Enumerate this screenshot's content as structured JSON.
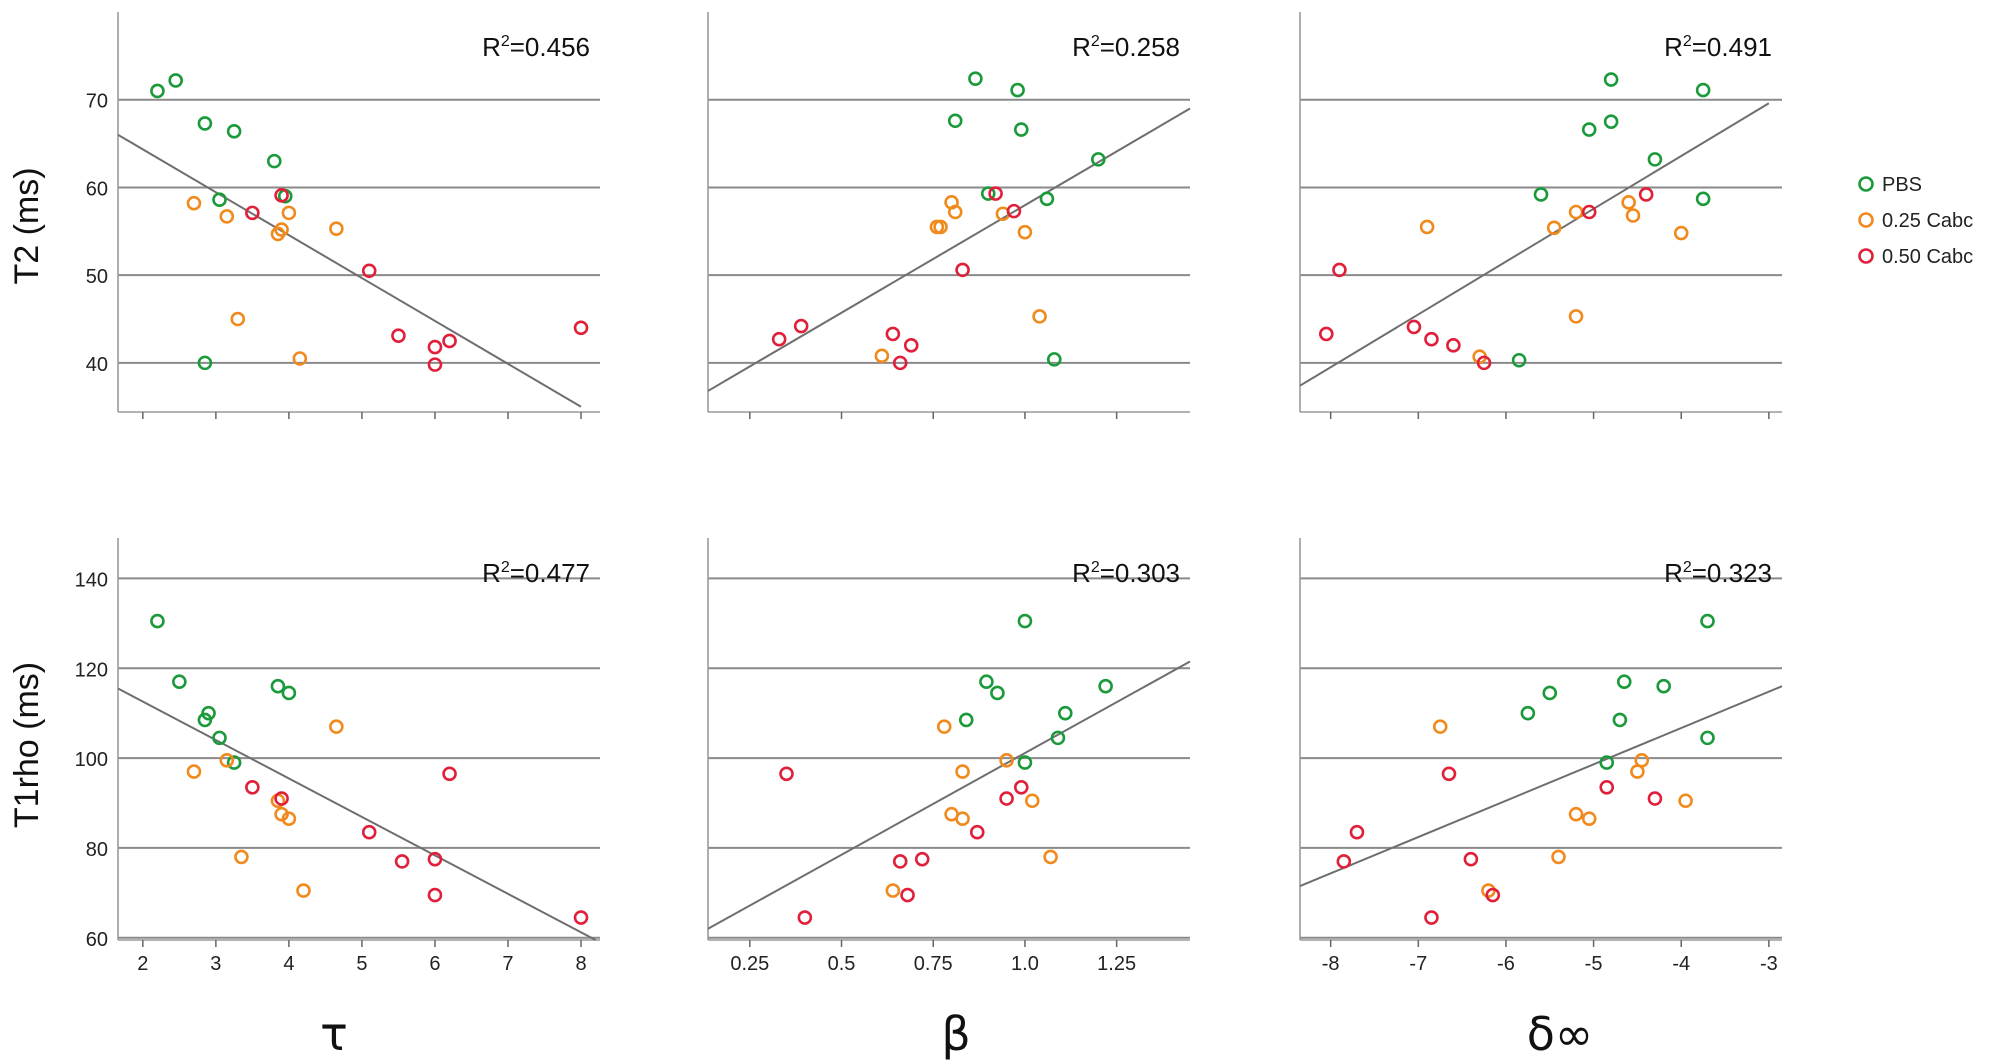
{
  "legend": [
    {
      "label": "PBS",
      "color": "#1a9a3a"
    },
    {
      "label": "0.25 Cabc",
      "color": "#f08a1c"
    },
    {
      "label": "0.50 Cabc",
      "color": "#e0203a"
    }
  ],
  "row_labels": {
    "top": "T2 (ms)",
    "bottom": "T1rho (ms)"
  },
  "column_labels": [
    "τ",
    "β",
    "δ∞"
  ],
  "chart_data": [
    {
      "type": "scatter",
      "row": 0,
      "col": 0,
      "xlabel": "τ",
      "ylabel": "T2 (ms)",
      "xlim": [
        1.66,
        8.26
      ],
      "ylim": [
        34.4,
        80
      ],
      "xticks": [
        2,
        3,
        4,
        5,
        6,
        7,
        8
      ],
      "show_xtick_labels": false,
      "yticks": [
        40,
        50,
        60,
        70
      ],
      "fit": {
        "x": [
          1.66,
          8.0
        ],
        "y": [
          66.0,
          35.0
        ]
      },
      "annotation": "R²=0.456",
      "r2_prefix": "R",
      "r2_sup": "2",
      "r2_value": "=0.456",
      "series": [
        {
          "name": "PBS",
          "points": [
            [
              2.2,
              71
            ],
            [
              2.45,
              72.2
            ],
            [
              2.85,
              67.3
            ],
            [
              3.25,
              66.4
            ],
            [
              3.05,
              58.6
            ],
            [
              3.8,
              63
            ],
            [
              3.95,
              59
            ],
            [
              2.85,
              40
            ]
          ]
        },
        {
          "name": "0.25 Cabc",
          "points": [
            [
              2.7,
              58.2
            ],
            [
              3.15,
              56.7
            ],
            [
              3.85,
              54.7
            ],
            [
              3.9,
              55.2
            ],
            [
              4.0,
              57.1
            ],
            [
              4.65,
              55.3
            ],
            [
              3.3,
              45
            ],
            [
              4.15,
              40.5
            ]
          ]
        },
        {
          "name": "0.50 Cabc",
          "points": [
            [
              3.5,
              57.1
            ],
            [
              3.9,
              59.1
            ],
            [
              5.1,
              50.5
            ],
            [
              5.5,
              43.1
            ],
            [
              6.0,
              41.8
            ],
            [
              6.2,
              42.5
            ],
            [
              6.0,
              39.8
            ],
            [
              8.0,
              44.0
            ]
          ]
        }
      ]
    },
    {
      "type": "scatter",
      "row": 0,
      "col": 1,
      "xlabel": "β",
      "ylabel": "T2 (ms)",
      "xlim": [
        0.136,
        1.45
      ],
      "ylim": [
        34.4,
        80
      ],
      "xticks": [
        0.25,
        0.5,
        0.75,
        1.0,
        1.25
      ],
      "show_xtick_labels": false,
      "yticks": [
        40,
        50,
        60,
        70
      ],
      "fit": {
        "x": [
          0.136,
          1.45
        ],
        "y": [
          36.8,
          69.0
        ]
      },
      "annotation": "R²=0.258",
      "r2_prefix": "R",
      "r2_sup": "2",
      "r2_value": "=0.258",
      "series": [
        {
          "name": "PBS",
          "points": [
            [
              0.865,
              72.4
            ],
            [
              0.98,
              71.1
            ],
            [
              0.81,
              67.6
            ],
            [
              0.99,
              66.6
            ],
            [
              1.2,
              63.2
            ],
            [
              0.9,
              59.3
            ],
            [
              1.06,
              58.7
            ],
            [
              1.08,
              40.4
            ]
          ]
        },
        {
          "name": "0.25 Cabc",
          "points": [
            [
              0.8,
              58.3
            ],
            [
              0.81,
              57.2
            ],
            [
              0.76,
              55.5
            ],
            [
              0.77,
              55.5
            ],
            [
              0.94,
              57.0
            ],
            [
              1.0,
              54.9
            ],
            [
              1.04,
              45.3
            ],
            [
              0.61,
              40.8
            ]
          ]
        },
        {
          "name": "0.50 Cabc",
          "points": [
            [
              0.92,
              59.3
            ],
            [
              0.97,
              57.3
            ],
            [
              0.83,
              50.6
            ],
            [
              0.33,
              42.7
            ],
            [
              0.39,
              44.2
            ],
            [
              0.64,
              43.3
            ],
            [
              0.69,
              42.0
            ],
            [
              0.66,
              40.0
            ]
          ]
        }
      ]
    },
    {
      "type": "scatter",
      "row": 0,
      "col": 2,
      "xlabel": "δ∞",
      "ylabel": "T2 (ms)",
      "xlim": [
        -8.35,
        -2.85
      ],
      "ylim": [
        34.4,
        80
      ],
      "xticks": [
        -8,
        -7,
        -6,
        -5,
        -4,
        -3
      ],
      "show_xtick_labels": false,
      "yticks": [
        40,
        50,
        60,
        70
      ],
      "fit": {
        "x": [
          -8.35,
          -3.0
        ],
        "y": [
          37.4,
          69.6
        ]
      },
      "annotation": "R²=0.491",
      "r2_prefix": "R",
      "r2_sup": "2",
      "r2_value": "=0.491",
      "series": [
        {
          "name": "PBS",
          "points": [
            [
              -4.8,
              72.3
            ],
            [
              -3.75,
              71.1
            ],
            [
              -4.8,
              67.5
            ],
            [
              -5.05,
              66.6
            ],
            [
              -4.3,
              63.2
            ],
            [
              -5.6,
              59.2
            ],
            [
              -3.75,
              58.7
            ],
            [
              -5.85,
              40.3
            ]
          ]
        },
        {
          "name": "0.25 Cabc",
          "points": [
            [
              -6.9,
              55.5
            ],
            [
              -5.2,
              57.2
            ],
            [
              -5.45,
              55.4
            ],
            [
              -4.6,
              58.3
            ],
            [
              -4.55,
              56.8
            ],
            [
              -4.0,
              54.8
            ],
            [
              -5.2,
              45.3
            ],
            [
              -6.3,
              40.7
            ]
          ]
        },
        {
          "name": "0.50 Cabc",
          "points": [
            [
              -7.9,
              50.6
            ],
            [
              -8.05,
              43.3
            ],
            [
              -7.05,
              44.1
            ],
            [
              -6.85,
              42.7
            ],
            [
              -6.6,
              42.0
            ],
            [
              -6.25,
              40.0
            ],
            [
              -5.05,
              57.2
            ],
            [
              -4.4,
              59.2
            ]
          ]
        }
      ]
    },
    {
      "type": "scatter",
      "row": 1,
      "col": 0,
      "xlabel": "τ",
      "ylabel": "T1rho (ms)",
      "xlim": [
        1.66,
        8.26
      ],
      "ylim": [
        59.5,
        149
      ],
      "xticks": [
        2,
        3,
        4,
        5,
        6,
        7,
        8
      ],
      "show_xtick_labels": true,
      "xtick_labels": [
        "2",
        "3",
        "4",
        "5",
        "6",
        "7",
        "8"
      ],
      "yticks": [
        60,
        80,
        100,
        120,
        140
      ],
      "fit": {
        "x": [
          1.66,
          8.2
        ],
        "y": [
          115.5,
          59.5
        ]
      },
      "annotation": "R²=0.477",
      "r2_prefix": "R",
      "r2_sup": "2",
      "r2_value": "=0.477",
      "series": [
        {
          "name": "PBS",
          "points": [
            [
              2.2,
              130.5
            ],
            [
              2.5,
              117
            ],
            [
              2.9,
              110
            ],
            [
              2.85,
              108.5
            ],
            [
              3.05,
              104.5
            ],
            [
              3.25,
              99
            ],
            [
              3.85,
              116
            ],
            [
              4.0,
              114.5
            ]
          ]
        },
        {
          "name": "0.25 Cabc",
          "points": [
            [
              2.7,
              97
            ],
            [
              3.15,
              99.5
            ],
            [
              3.9,
              87.5
            ],
            [
              4.0,
              86.5
            ],
            [
              4.65,
              107
            ],
            [
              3.35,
              78
            ],
            [
              4.2,
              70.5
            ],
            [
              3.85,
              90.5
            ]
          ]
        },
        {
          "name": "0.50 Cabc",
          "points": [
            [
              3.5,
              93.5
            ],
            [
              3.9,
              91
            ],
            [
              5.1,
              83.5
            ],
            [
              5.55,
              77
            ],
            [
              6.0,
              77.5
            ],
            [
              6.2,
              96.5
            ],
            [
              6.0,
              69.5
            ],
            [
              8.0,
              64.5
            ]
          ]
        }
      ]
    },
    {
      "type": "scatter",
      "row": 1,
      "col": 1,
      "xlabel": "β",
      "ylabel": "T1rho (ms)",
      "xlim": [
        0.136,
        1.45
      ],
      "ylim": [
        59.5,
        149
      ],
      "xticks": [
        0.25,
        0.5,
        0.75,
        1.0,
        1.25
      ],
      "show_xtick_labels": true,
      "xtick_labels": [
        "0.25",
        "0.5",
        "0.75",
        "1.0",
        "1.25"
      ],
      "yticks": [
        60,
        80,
        100,
        120,
        140
      ],
      "fit": {
        "x": [
          0.136,
          1.45
        ],
        "y": [
          62.0,
          121.5
        ]
      },
      "annotation": "R²=0.303",
      "r2_prefix": "R",
      "r2_sup": "2",
      "r2_value": "=0.303",
      "series": [
        {
          "name": "PBS",
          "points": [
            [
              1.0,
              130.5
            ],
            [
              0.895,
              117
            ],
            [
              0.925,
              114.5
            ],
            [
              1.22,
              116
            ],
            [
              1.11,
              110
            ],
            [
              0.84,
              108.5
            ],
            [
              1.09,
              104.5
            ],
            [
              1.0,
              99
            ]
          ]
        },
        {
          "name": "0.25 Cabc",
          "points": [
            [
              0.78,
              107
            ],
            [
              0.95,
              99.5
            ],
            [
              0.83,
              97
            ],
            [
              0.8,
              87.5
            ],
            [
              0.83,
              86.5
            ],
            [
              1.02,
              90.5
            ],
            [
              1.07,
              78
            ],
            [
              0.64,
              70.5
            ]
          ]
        },
        {
          "name": "0.50 Cabc",
          "points": [
            [
              0.35,
              96.5
            ],
            [
              0.4,
              64.5
            ],
            [
              0.95,
              91
            ],
            [
              0.99,
              93.5
            ],
            [
              0.87,
              83.5
            ],
            [
              0.66,
              77
            ],
            [
              0.72,
              77.5
            ],
            [
              0.68,
              69.5
            ]
          ]
        }
      ]
    },
    {
      "type": "scatter",
      "row": 1,
      "col": 2,
      "xlabel": "δ∞",
      "ylabel": "T1rho (ms)",
      "xlim": [
        -8.35,
        -2.85
      ],
      "ylim": [
        59.5,
        149
      ],
      "xticks": [
        -8,
        -7,
        -6,
        -5,
        -4,
        -3
      ],
      "show_xtick_labels": true,
      "xtick_labels": [
        "-8",
        "-7",
        "-6",
        "-5",
        "-4",
        "-3"
      ],
      "yticks": [
        60,
        80,
        100,
        120,
        140
      ],
      "fit": {
        "x": [
          -8.35,
          -2.85
        ],
        "y": [
          71.5,
          116.0
        ]
      },
      "annotation": "R²=0.323",
      "r2_prefix": "R",
      "r2_sup": "2",
      "r2_value": "=0.323",
      "series": [
        {
          "name": "PBS",
          "points": [
            [
              -3.7,
              130.5
            ],
            [
              -4.65,
              117
            ],
            [
              -5.5,
              114.5
            ],
            [
              -4.2,
              116
            ],
            [
              -5.75,
              110
            ],
            [
              -4.7,
              108.5
            ],
            [
              -3.7,
              104.5
            ],
            [
              -4.85,
              99
            ]
          ]
        },
        {
          "name": "0.25 Cabc",
          "points": [
            [
              -6.75,
              107
            ],
            [
              -4.45,
              99.5
            ],
            [
              -4.5,
              97
            ],
            [
              -5.2,
              87.5
            ],
            [
              -5.05,
              86.5
            ],
            [
              -3.95,
              90.5
            ],
            [
              -5.4,
              78
            ],
            [
              -6.2,
              70.5
            ]
          ]
        },
        {
          "name": "0.50 Cabc",
          "points": [
            [
              -6.65,
              96.5
            ],
            [
              -7.7,
              83.5
            ],
            [
              -7.85,
              77
            ],
            [
              -6.4,
              77.5
            ],
            [
              -6.15,
              69.5
            ],
            [
              -6.85,
              64.5
            ],
            [
              -4.85,
              93.5
            ],
            [
              -4.3,
              91
            ]
          ]
        }
      ]
    }
  ]
}
